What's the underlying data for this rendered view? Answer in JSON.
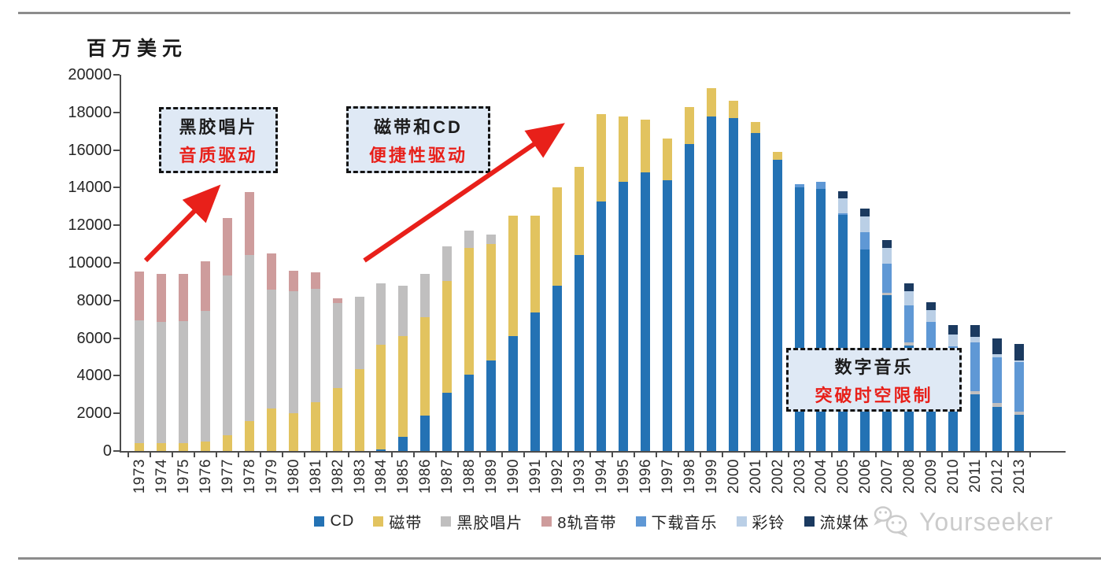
{
  "page": {
    "unit_label": "百万美元",
    "watermark_text": "Yourseeker"
  },
  "annotations": [
    {
      "title": "黑胶唱片",
      "subtitle": "音质驱动"
    },
    {
      "title": "磁带和CD",
      "subtitle": "便捷性驱动"
    },
    {
      "title": "数字音乐",
      "subtitle": "突破时空限制"
    }
  ],
  "colors": {
    "accent_red": "#e8201a",
    "callout_bg": "#dfe9f5",
    "axis": "#4d4d4d",
    "watermark_gray": "#cbcbcb"
  },
  "chart_data": {
    "type": "bar",
    "stacked": true,
    "title": "",
    "ylabel": "百万美元",
    "xlabel": "",
    "ylim": [
      0,
      20000
    ],
    "ytick_step": 2000,
    "yticks": [
      0,
      2000,
      4000,
      6000,
      8000,
      10000,
      12000,
      14000,
      16000,
      18000,
      20000
    ],
    "grid": false,
    "legend_position": "bottom",
    "categories": [
      1973,
      1974,
      1975,
      1976,
      1977,
      1978,
      1979,
      1980,
      1981,
      1982,
      1983,
      1984,
      1985,
      1986,
      1987,
      1988,
      1989,
      1990,
      1991,
      1992,
      1993,
      1994,
      1995,
      1996,
      1997,
      1998,
      1999,
      2000,
      2001,
      2002,
      2003,
      2004,
      2005,
      2006,
      2007,
      2008,
      2009,
      2010,
      2011,
      2012,
      2013
    ],
    "series": [
      {
        "name": "CD",
        "color": "#2472b4",
        "values": [
          0,
          0,
          0,
          0,
          0,
          0,
          0,
          0,
          0,
          0,
          0,
          100,
          750,
          1870,
          3100,
          4050,
          4800,
          6100,
          7350,
          8800,
          10400,
          13250,
          14300,
          14800,
          14400,
          16300,
          17800,
          17700,
          16900,
          15500,
          14000,
          13950,
          12550,
          10700,
          8300,
          5600,
          5050,
          3400,
          3000,
          2350,
          1910
        ]
      },
      {
        "name": "磁带",
        "color": "#e2c35f",
        "values": [
          400,
          400,
          400,
          500,
          850,
          1600,
          2250,
          2000,
          2600,
          3350,
          4350,
          5550,
          5350,
          5260,
          5950,
          6750,
          6200,
          6400,
          5150,
          5200,
          4700,
          4650,
          3500,
          2800,
          2200,
          2000,
          1500,
          900,
          600,
          400,
          0,
          0,
          0,
          0,
          0,
          0,
          0,
          0,
          0,
          0,
          0
        ]
      },
      {
        "name": "黑胶唱片",
        "color": "#c0bfbf",
        "values": [
          6550,
          6450,
          6500,
          6950,
          8480,
          8830,
          6320,
          6490,
          6000,
          4500,
          3850,
          3250,
          2700,
          2270,
          1850,
          900,
          500,
          0,
          0,
          0,
          0,
          0,
          0,
          0,
          0,
          0,
          0,
          0,
          0,
          0,
          0,
          0,
          0,
          0,
          100,
          180,
          180,
          180,
          200,
          210,
          195
        ]
      },
      {
        "name": "8轨音带",
        "color": "#ce9c9c",
        "values": [
          2600,
          2550,
          2500,
          2650,
          3070,
          3340,
          1940,
          1080,
          900,
          250,
          0,
          0,
          0,
          0,
          0,
          0,
          0,
          0,
          0,
          0,
          0,
          0,
          0,
          0,
          0,
          0,
          0,
          0,
          0,
          0,
          0,
          0,
          0,
          0,
          0,
          0,
          0,
          0,
          0,
          0,
          0
        ]
      },
      {
        "name": "下载音乐",
        "color": "#5f98d5",
        "values": [
          0,
          0,
          0,
          0,
          0,
          0,
          0,
          0,
          0,
          0,
          0,
          0,
          0,
          0,
          0,
          0,
          0,
          0,
          0,
          0,
          0,
          0,
          0,
          0,
          0,
          0,
          0,
          0,
          0,
          0,
          200,
          350,
          100,
          950,
          1550,
          1950,
          1650,
          2005,
          2590,
          2440,
          2615
        ]
      },
      {
        "name": "彩铃",
        "color": "#bacfe6",
        "values": [
          0,
          0,
          0,
          0,
          0,
          0,
          0,
          0,
          0,
          0,
          0,
          0,
          0,
          0,
          0,
          0,
          0,
          0,
          0,
          0,
          0,
          0,
          0,
          0,
          0,
          0,
          0,
          0,
          0,
          0,
          0,
          0,
          800,
          800,
          850,
          750,
          600,
          625,
          280,
          165,
          100
        ]
      },
      {
        "name": "流媒体",
        "color": "#1b3a60",
        "values": [
          0,
          0,
          0,
          0,
          0,
          0,
          0,
          0,
          0,
          0,
          0,
          0,
          0,
          0,
          0,
          0,
          0,
          0,
          0,
          0,
          0,
          0,
          0,
          0,
          0,
          0,
          0,
          0,
          0,
          0,
          0,
          0,
          350,
          450,
          400,
          420,
          420,
          490,
          630,
          835,
          880
        ]
      }
    ]
  }
}
